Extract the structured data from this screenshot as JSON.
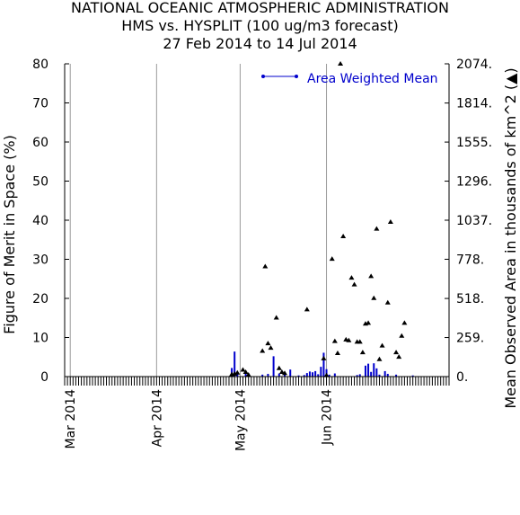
{
  "title_lines": [
    "NATIONAL OCEANIC ATMOSPHERIC ADMINISTRATION",
    "HMS vs. HYSPLIT (100 ug/m3 forecast)",
    "27 Feb 2014 to 14 Jul 2014"
  ],
  "colors": {
    "bars": "#0000cc",
    "legend_text": "#0000cc",
    "markers": "#000000",
    "grid": "#9a9a9a",
    "axis": "#000000"
  },
  "chart_data": {
    "type": "bar",
    "x_range": [
      "2014-02-27",
      "2014-07-14"
    ],
    "month_labels": [
      {
        "date": "2014-03-01",
        "label": "Mar 2014"
      },
      {
        "date": "2014-04-01",
        "label": "Apr 2014"
      },
      {
        "date": "2014-05-01",
        "label": "May 2014"
      },
      {
        "date": "2014-06-01",
        "label": "Jun 2014"
      }
    ],
    "left_axis": {
      "label": "Figure of Merit in Space (%)",
      "ylim": [
        0,
        80
      ],
      "ticks": [
        0,
        10,
        20,
        30,
        40,
        50,
        60,
        70,
        80
      ]
    },
    "right_axis": {
      "label": "Mean Observed Area in thousands of km^2 (▲)",
      "ylim": [
        0,
        2074
      ],
      "ticks": [
        {
          "value": 0,
          "label": "0."
        },
        {
          "value": 259,
          "label": "259."
        },
        {
          "value": 518,
          "label": "518."
        },
        {
          "value": 778,
          "label": "778."
        },
        {
          "value": 1037,
          "label": "1037."
        },
        {
          "value": 1296,
          "label": "1296."
        },
        {
          "value": 1555,
          "label": "1555."
        },
        {
          "value": 1814,
          "label": "1814."
        },
        {
          "value": 2074,
          "label": "2074."
        }
      ]
    },
    "grid_x": true,
    "legend": {
      "position": "top-right",
      "entries": [
        "Area Weighted Mean"
      ]
    },
    "bars": [
      {
        "date": "2014-04-28",
        "value": 2.2
      },
      {
        "date": "2014-04-29",
        "value": 6.4
      },
      {
        "date": "2014-04-30",
        "value": 0.9
      },
      {
        "date": "2014-05-03",
        "value": 1.2
      },
      {
        "date": "2014-05-04",
        "value": 0.6
      },
      {
        "date": "2014-05-09",
        "value": 0.5
      },
      {
        "date": "2014-05-11",
        "value": 0.7
      },
      {
        "date": "2014-05-13",
        "value": 5.2
      },
      {
        "date": "2014-05-15",
        "value": 0.8
      },
      {
        "date": "2014-05-17",
        "value": 1.0
      },
      {
        "date": "2014-05-19",
        "value": 1.8
      },
      {
        "date": "2014-05-22",
        "value": 0.3
      },
      {
        "date": "2014-05-24",
        "value": 0.4
      },
      {
        "date": "2014-05-25",
        "value": 0.9
      },
      {
        "date": "2014-05-26",
        "value": 1.3
      },
      {
        "date": "2014-05-27",
        "value": 1.1
      },
      {
        "date": "2014-05-28",
        "value": 1.4
      },
      {
        "date": "2014-05-29",
        "value": 0.6
      },
      {
        "date": "2014-05-30",
        "value": 2.5
      },
      {
        "date": "2014-05-31",
        "value": 6.1
      },
      {
        "date": "2014-06-01",
        "value": 1.9
      },
      {
        "date": "2014-06-02",
        "value": 0.5
      },
      {
        "date": "2014-06-04",
        "value": 0.8
      },
      {
        "date": "2014-06-12",
        "value": 0.4
      },
      {
        "date": "2014-06-13",
        "value": 0.6
      },
      {
        "date": "2014-06-15",
        "value": 2.8
      },
      {
        "date": "2014-06-16",
        "value": 3.3
      },
      {
        "date": "2014-06-17",
        "value": 1.2
      },
      {
        "date": "2014-06-18",
        "value": 3.4
      },
      {
        "date": "2014-06-19",
        "value": 2.1
      },
      {
        "date": "2014-06-20",
        "value": 0.5
      },
      {
        "date": "2014-06-22",
        "value": 1.4
      },
      {
        "date": "2014-06-23",
        "value": 0.7
      },
      {
        "date": "2014-06-26",
        "value": 0.5
      },
      {
        "date": "2014-07-02",
        "value": 0.3
      }
    ],
    "markers": [
      {
        "date": "2014-04-28",
        "value": 15
      },
      {
        "date": "2014-04-29",
        "value": 18
      },
      {
        "date": "2014-04-30",
        "value": 25
      },
      {
        "date": "2014-05-02",
        "value": 45
      },
      {
        "date": "2014-05-03",
        "value": 30
      },
      {
        "date": "2014-05-04",
        "value": 12
      },
      {
        "date": "2014-05-09",
        "value": 170
      },
      {
        "date": "2014-05-10",
        "value": 730
      },
      {
        "date": "2014-05-11",
        "value": 220
      },
      {
        "date": "2014-05-12",
        "value": 190
      },
      {
        "date": "2014-05-14",
        "value": 390
      },
      {
        "date": "2014-05-15",
        "value": 55
      },
      {
        "date": "2014-05-16",
        "value": 30
      },
      {
        "date": "2014-05-17",
        "value": 22
      },
      {
        "date": "2014-05-25",
        "value": 445
      },
      {
        "date": "2014-05-31",
        "value": 120
      },
      {
        "date": "2014-06-01",
        "value": 8
      },
      {
        "date": "2014-06-03",
        "value": 780
      },
      {
        "date": "2014-06-04",
        "value": 235
      },
      {
        "date": "2014-06-05",
        "value": 155
      },
      {
        "date": "2014-06-06",
        "value": 2074
      },
      {
        "date": "2014-06-07",
        "value": 930
      },
      {
        "date": "2014-06-08",
        "value": 245
      },
      {
        "date": "2014-06-09",
        "value": 240
      },
      {
        "date": "2014-06-10",
        "value": 655
      },
      {
        "date": "2014-06-11",
        "value": 610
      },
      {
        "date": "2014-06-12",
        "value": 230
      },
      {
        "date": "2014-06-13",
        "value": 230
      },
      {
        "date": "2014-06-14",
        "value": 160
      },
      {
        "date": "2014-06-15",
        "value": 350
      },
      {
        "date": "2014-06-16",
        "value": 355
      },
      {
        "date": "2014-06-17",
        "value": 665
      },
      {
        "date": "2014-06-18",
        "value": 520
      },
      {
        "date": "2014-06-19",
        "value": 980
      },
      {
        "date": "2014-06-20",
        "value": 115
      },
      {
        "date": "2014-06-21",
        "value": 205
      },
      {
        "date": "2014-06-23",
        "value": 490
      },
      {
        "date": "2014-06-24",
        "value": 1025
      },
      {
        "date": "2014-06-26",
        "value": 160
      },
      {
        "date": "2014-06-27",
        "value": 130
      },
      {
        "date": "2014-06-28",
        "value": 270
      },
      {
        "date": "2014-06-29",
        "value": 355
      }
    ]
  }
}
